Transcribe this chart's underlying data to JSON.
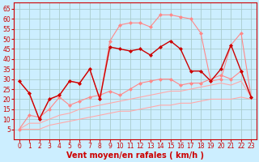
{
  "xlabel": "Vent moyen/en rafales ( km/h )",
  "background_color": "#cceeff",
  "grid_color": "#aacccc",
  "xlim": [
    -0.5,
    23.5
  ],
  "ylim": [
    0,
    68
  ],
  "yticks": [
    5,
    10,
    15,
    20,
    25,
    30,
    35,
    40,
    45,
    50,
    55,
    60,
    65
  ],
  "xticks": [
    0,
    1,
    2,
    3,
    4,
    5,
    6,
    7,
    8,
    9,
    10,
    11,
    12,
    13,
    14,
    15,
    16,
    17,
    18,
    19,
    20,
    21,
    22,
    23
  ],
  "line_dark_x": [
    0,
    1,
    2,
    3,
    4,
    5,
    6,
    7,
    8,
    9,
    10,
    11,
    12,
    13,
    14,
    15,
    16,
    17,
    18,
    19,
    20,
    21,
    22,
    23
  ],
  "line_dark_y": [
    29,
    23,
    10,
    20,
    22,
    29,
    28,
    35,
    20,
    46,
    45,
    44,
    45,
    42,
    46,
    49,
    45,
    34,
    34,
    29,
    35,
    47,
    34,
    21
  ],
  "line_gust_x": [
    0,
    1,
    2,
    3,
    4,
    5,
    6,
    7,
    8,
    9,
    10,
    11,
    12,
    13,
    14,
    15,
    16,
    17,
    18,
    19,
    20,
    21,
    22,
    23
  ],
  "line_gust_y": [
    29,
    23,
    10,
    20,
    22,
    29,
    28,
    35,
    20,
    49,
    57,
    58,
    58,
    56,
    62,
    62,
    61,
    60,
    53,
    29,
    30,
    47,
    53,
    21
  ],
  "line_mid_x": [
    0,
    1,
    2,
    3,
    4,
    5,
    6,
    7,
    8,
    9,
    10,
    11,
    12,
    13,
    14,
    15,
    16,
    17,
    18,
    19,
    20,
    21,
    22,
    23
  ],
  "line_mid_y": [
    5,
    12,
    11,
    15,
    21,
    17,
    19,
    21,
    22,
    24,
    22,
    25,
    28,
    29,
    30,
    30,
    27,
    28,
    28,
    30,
    32,
    30,
    34,
    21
  ],
  "line_avg_x": [
    0,
    1,
    2,
    3,
    4,
    5,
    6,
    7,
    8,
    9,
    10,
    11,
    12,
    13,
    14,
    15,
    16,
    17,
    18,
    19,
    20,
    21,
    22,
    23
  ],
  "line_avg_y": [
    5,
    8,
    8,
    10,
    12,
    13,
    15,
    16,
    17,
    18,
    19,
    20,
    21,
    22,
    23,
    24,
    24,
    25,
    26,
    27,
    28,
    27,
    29,
    21
  ],
  "line_low_x": [
    0,
    1,
    2,
    3,
    4,
    5,
    6,
    7,
    8,
    9,
    10,
    11,
    12,
    13,
    14,
    15,
    16,
    17,
    18,
    19,
    20,
    21,
    22,
    23
  ],
  "line_low_y": [
    5,
    5,
    5,
    7,
    8,
    9,
    10,
    11,
    12,
    13,
    14,
    14,
    15,
    16,
    17,
    17,
    18,
    18,
    19,
    20,
    20,
    20,
    21,
    20
  ],
  "dark_color": "#cc0000",
  "pink_color": "#ff8888",
  "light_color": "#ffaaaa",
  "xlabel_color": "#cc0000",
  "tick_color": "#cc0000",
  "spine_color": "#cc0000"
}
